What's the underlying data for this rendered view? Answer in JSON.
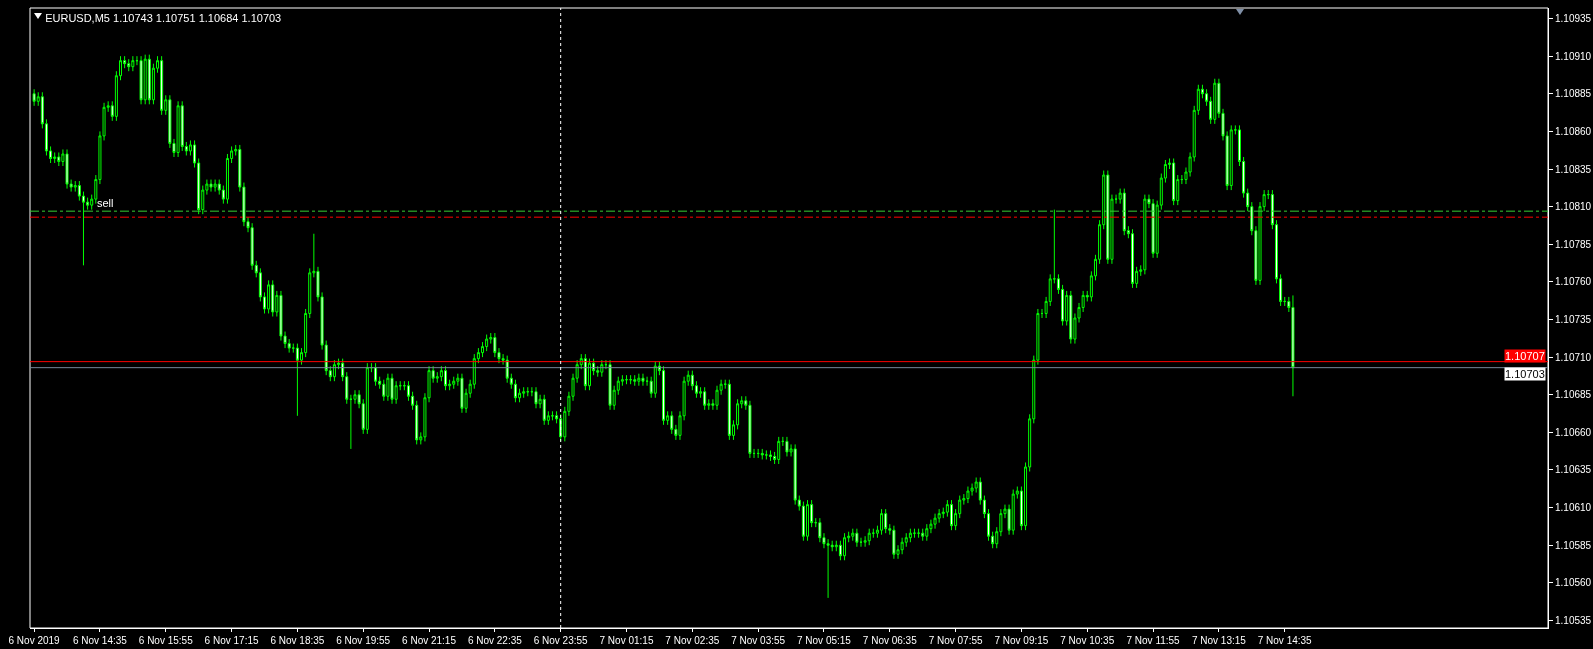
{
  "chart_data": {
    "type": "candlestick",
    "title": "EURUSD,M5 1.10743 1.10751 1.10684 1.10703",
    "color": "#00ff00",
    "x": [
      "2019-11-06T13:15",
      "2019-11-06T13:20",
      "2019-11-06T13:25",
      "2019-11-06T13:30",
      "2019-11-06T13:35",
      "2019-11-06T13:40",
      "2019-11-06T13:45",
      "2019-11-06T13:50",
      "2019-11-06T13:55",
      "2019-11-06T14:00",
      "2019-11-06T14:05",
      "2019-11-06T14:10",
      "2019-11-06T14:15",
      "2019-11-06T14:20",
      "2019-11-06T14:25",
      "2019-11-06T14:30",
      "2019-11-06T14:35",
      "2019-11-06T14:40",
      "2019-11-06T14:45",
      "2019-11-06T14:50",
      "2019-11-06T14:55",
      "2019-11-06T15:00",
      "2019-11-06T15:05",
      "2019-11-06T15:10",
      "2019-11-06T15:15",
      "2019-11-06T15:20",
      "2019-11-06T15:25",
      "2019-11-06T15:30",
      "2019-11-06T15:35",
      "2019-11-06T15:40",
      "2019-11-06T15:45",
      "2019-11-06T15:50",
      "2019-11-06T15:55",
      "2019-11-06T16:00",
      "2019-11-06T16:05",
      "2019-11-06T16:10",
      "2019-11-06T16:15",
      "2019-11-06T16:20",
      "2019-11-06T16:25",
      "2019-11-06T16:30",
      "2019-11-06T16:35",
      "2019-11-06T16:40",
      "2019-11-06T16:45",
      "2019-11-06T16:50",
      "2019-11-06T16:55",
      "2019-11-06T17:00",
      "2019-11-06T17:05",
      "2019-11-06T17:10",
      "2019-11-06T17:15",
      "2019-11-06T17:20",
      "2019-11-06T17:25",
      "2019-11-06T17:30",
      "2019-11-06T17:35",
      "2019-11-06T17:40",
      "2019-11-06T17:45",
      "2019-11-06T17:50",
      "2019-11-06T17:55",
      "2019-11-06T18:00",
      "2019-11-06T18:05",
      "2019-11-06T18:10",
      "2019-11-06T18:15",
      "2019-11-06T18:20",
      "2019-11-06T18:25",
      "2019-11-06T18:30",
      "2019-11-06T18:35",
      "2019-11-06T18:40",
      "2019-11-06T18:45",
      "2019-11-06T18:50",
      "2019-11-06T18:55",
      "2019-11-06T19:00",
      "2019-11-06T19:05",
      "2019-11-06T19:10",
      "2019-11-06T19:15",
      "2019-11-06T19:20",
      "2019-11-06T19:25",
      "2019-11-06T19:30",
      "2019-11-06T19:35",
      "2019-11-06T19:40",
      "2019-11-06T19:45",
      "2019-11-06T19:50",
      "2019-11-06T19:55",
      "2019-11-06T20:00",
      "2019-11-06T20:05",
      "2019-11-06T20:10",
      "2019-11-06T20:15",
      "2019-11-06T20:20",
      "2019-11-06T20:25",
      "2019-11-06T20:30",
      "2019-11-06T20:35",
      "2019-11-06T20:40",
      "2019-11-06T20:45",
      "2019-11-06T20:50",
      "2019-11-06T20:55",
      "2019-11-06T21:00",
      "2019-11-06T21:05",
      "2019-11-06T21:10",
      "2019-11-06T21:15",
      "2019-11-06T21:20",
      "2019-11-06T21:25",
      "2019-11-06T21:30",
      "2019-11-06T21:35",
      "2019-11-06T21:40",
      "2019-11-06T21:45",
      "2019-11-06T21:50",
      "2019-11-06T21:55",
      "2019-11-06T22:00",
      "2019-11-06T22:05",
      "2019-11-06T22:10",
      "2019-11-06T22:15",
      "2019-11-06T22:20",
      "2019-11-06T22:25",
      "2019-11-06T22:30",
      "2019-11-06T22:35",
      "2019-11-06T22:40",
      "2019-11-06T22:45",
      "2019-11-06T22:50",
      "2019-11-06T22:55",
      "2019-11-06T23:00",
      "2019-11-06T23:05",
      "2019-11-06T23:10",
      "2019-11-06T23:15",
      "2019-11-06T23:20",
      "2019-11-06T23:25",
      "2019-11-06T23:30",
      "2019-11-06T23:35",
      "2019-11-06T23:40",
      "2019-11-06T23:45",
      "2019-11-06T23:50",
      "2019-11-06T23:55",
      "2019-11-07T00:00",
      "2019-11-07T00:05",
      "2019-11-07T00:10",
      "2019-11-07T00:15",
      "2019-11-07T00:20",
      "2019-11-07T00:25",
      "2019-11-07T00:30",
      "2019-11-07T00:35",
      "2019-11-07T00:40",
      "2019-11-07T00:45",
      "2019-11-07T00:50",
      "2019-11-07T00:55",
      "2019-11-07T01:00",
      "2019-11-07T01:05",
      "2019-11-07T01:10",
      "2019-11-07T01:15",
      "2019-11-07T01:20",
      "2019-11-07T01:25",
      "2019-11-07T01:30",
      "2019-11-07T01:35",
      "2019-11-07T01:40",
      "2019-11-07T01:45",
      "2019-11-07T01:50",
      "2019-11-07T01:55",
      "2019-11-07T02:00",
      "2019-11-07T02:05",
      "2019-11-07T02:10",
      "2019-11-07T02:15",
      "2019-11-07T02:20",
      "2019-11-07T02:25",
      "2019-11-07T02:30",
      "2019-11-07T02:35",
      "2019-11-07T02:40",
      "2019-11-07T02:45",
      "2019-11-07T02:50",
      "2019-11-07T02:55",
      "2019-11-07T03:00",
      "2019-11-07T03:05",
      "2019-11-07T03:10",
      "2019-11-07T03:15",
      "2019-11-07T03:20",
      "2019-11-07T03:25",
      "2019-11-07T03:30",
      "2019-11-07T03:35",
      "2019-11-07T03:40",
      "2019-11-07T03:45",
      "2019-11-07T03:50",
      "2019-11-07T03:55",
      "2019-11-07T04:00",
      "2019-11-07T04:05",
      "2019-11-07T04:10",
      "2019-11-07T04:15",
      "2019-11-07T04:20",
      "2019-11-07T04:25",
      "2019-11-07T04:30",
      "2019-11-07T04:35",
      "2019-11-07T04:40",
      "2019-11-07T04:45",
      "2019-11-07T04:50",
      "2019-11-07T04:55",
      "2019-11-07T05:00",
      "2019-11-07T05:05",
      "2019-11-07T05:10",
      "2019-11-07T05:15",
      "2019-11-07T05:20",
      "2019-11-07T05:25",
      "2019-11-07T05:30",
      "2019-11-07T05:35",
      "2019-11-07T05:40",
      "2019-11-07T05:45",
      "2019-11-07T05:50",
      "2019-11-07T05:55",
      "2019-11-07T06:00",
      "2019-11-07T06:05",
      "2019-11-07T06:10",
      "2019-11-07T06:15",
      "2019-11-07T06:20",
      "2019-11-07T06:25",
      "2019-11-07T06:30",
      "2019-11-07T06:35",
      "2019-11-07T06:40",
      "2019-11-07T06:45",
      "2019-11-07T06:50",
      "2019-11-07T06:55",
      "2019-11-07T07:00",
      "2019-11-07T07:05",
      "2019-11-07T07:10",
      "2019-11-07T07:15",
      "2019-11-07T07:20",
      "2019-11-07T07:25",
      "2019-11-07T07:30",
      "2019-11-07T07:35",
      "2019-11-07T07:40",
      "2019-11-07T07:45",
      "2019-11-07T07:50",
      "2019-11-07T07:55",
      "2019-11-07T08:00",
      "2019-11-07T08:05",
      "2019-11-07T08:10",
      "2019-11-07T08:15",
      "2019-11-07T08:20",
      "2019-11-07T08:25",
      "2019-11-07T08:30",
      "2019-11-07T08:35",
      "2019-11-07T08:40",
      "2019-11-07T08:45",
      "2019-11-07T08:50",
      "2019-11-07T08:55",
      "2019-11-07T09:00",
      "2019-11-07T09:05",
      "2019-11-07T09:10",
      "2019-11-07T09:15",
      "2019-11-07T09:20",
      "2019-11-07T09:25",
      "2019-11-07T09:30",
      "2019-11-07T09:35",
      "2019-11-07T09:40",
      "2019-11-07T09:45",
      "2019-11-07T09:50",
      "2019-11-07T09:55",
      "2019-11-07T10:00",
      "2019-11-07T10:05",
      "2019-11-07T10:10",
      "2019-11-07T10:15",
      "2019-11-07T10:20",
      "2019-11-07T10:25",
      "2019-11-07T10:30",
      "2019-11-07T10:35",
      "2019-11-07T10:40",
      "2019-11-07T10:45",
      "2019-11-07T10:50",
      "2019-11-07T10:55",
      "2019-11-07T11:00",
      "2019-11-07T11:05",
      "2019-11-07T11:10",
      "2019-11-07T11:15",
      "2019-11-07T11:20",
      "2019-11-07T11:25",
      "2019-11-07T11:30",
      "2019-11-07T11:35",
      "2019-11-07T11:40",
      "2019-11-07T11:45",
      "2019-11-07T11:50",
      "2019-11-07T11:55",
      "2019-11-07T12:00",
      "2019-11-07T12:05",
      "2019-11-07T12:10",
      "2019-11-07T12:15",
      "2019-11-07T12:20",
      "2019-11-07T12:25",
      "2019-11-07T12:30",
      "2019-11-07T12:35",
      "2019-11-07T12:40",
      "2019-11-07T12:45",
      "2019-11-07T12:50",
      "2019-11-07T12:55",
      "2019-11-07T13:00",
      "2019-11-07T13:05",
      "2019-11-07T13:10",
      "2019-11-07T13:15",
      "2019-11-07T13:20",
      "2019-11-07T13:25",
      "2019-11-07T13:30",
      "2019-11-07T13:35",
      "2019-11-07T13:40",
      "2019-11-07T13:45",
      "2019-11-07T13:50",
      "2019-11-07T13:55",
      "2019-11-07T14:00",
      "2019-11-07T14:05",
      "2019-11-07T14:10",
      "2019-11-07T14:15",
      "2019-11-07T14:20",
      "2019-11-07T14:25",
      "2019-11-07T14:30",
      "2019-11-07T14:35",
      "2019-11-07T14:40",
      "2019-11-07T14:45"
    ],
    "xlim": [
      "2019-11-06T13:10",
      "2019-11-07T19:55"
    ],
    "xticks": [
      {
        "value": "2019-11-06T13:15",
        "label": "6 Nov 2019"
      },
      {
        "value": "2019-11-06T14:35",
        "label": "6 Nov 14:35"
      },
      {
        "value": "2019-11-06T15:55",
        "label": "6 Nov 15:55"
      },
      {
        "value": "2019-11-06T17:15",
        "label": "6 Nov 17:15"
      },
      {
        "value": "2019-11-06T18:35",
        "label": "6 Nov 18:35"
      },
      {
        "value": "2019-11-06T19:55",
        "label": "6 Nov 19:55"
      },
      {
        "value": "2019-11-06T21:15",
        "label": "6 Nov 21:15"
      },
      {
        "value": "2019-11-06T22:35",
        "label": "6 Nov 22:35"
      },
      {
        "value": "2019-11-06T23:55",
        "label": "6 Nov 23:55"
      },
      {
        "value": "2019-11-07T01:15",
        "label": "7 Nov 01:15"
      },
      {
        "value": "2019-11-07T02:35",
        "label": "7 Nov 02:35"
      },
      {
        "value": "2019-11-07T03:55",
        "label": "7 Nov 03:55"
      },
      {
        "value": "2019-11-07T05:15",
        "label": "7 Nov 05:15"
      },
      {
        "value": "2019-11-07T06:35",
        "label": "7 Nov 06:35"
      },
      {
        "value": "2019-11-07T07:55",
        "label": "7 Nov 07:55"
      },
      {
        "value": "2019-11-07T09:15",
        "label": "7 Nov 09:15"
      },
      {
        "value": "2019-11-07T10:35",
        "label": "7 Nov 10:35"
      },
      {
        "value": "2019-11-07T11:55",
        "label": "7 Nov 11:55"
      },
      {
        "value": "2019-11-07T13:15",
        "label": "7 Nov 13:15"
      },
      {
        "value": "2019-11-07T14:35",
        "label": "7 Nov 14:35"
      }
    ],
    "ohlc": [
      [
        1.10885,
        1.10888,
        1.10877,
        1.1088
      ],
      [
        1.1088,
        1.10886,
        1.10877,
        1.10883
      ],
      [
        1.10883,
        1.10886,
        1.10862,
        1.10865
      ],
      [
        1.10865,
        1.10868,
        1.10844,
        1.10847
      ],
      [
        1.10847,
        1.1085,
        1.10839,
        1.10842
      ],
      [
        1.10842,
        1.10846,
        1.10839,
        1.10843
      ],
      [
        1.10843,
        1.10846,
        1.10837,
        1.1084
      ],
      [
        1.1084,
        1.10848,
        1.10837,
        1.10845
      ],
      [
        1.10845,
        1.10848,
        1.10822,
        1.10825
      ],
      [
        1.10825,
        1.10828,
        1.1082,
        1.10823
      ],
      [
        1.10823,
        1.10827,
        1.1082,
        1.10824
      ],
      [
        1.10824,
        1.10827,
        1.10814,
        1.10817
      ],
      [
        1.10817,
        1.1082,
        1.10771,
        1.10813
      ],
      [
        1.10813,
        1.10816,
        1.10808,
        1.10811
      ],
      [
        1.10811,
        1.10818,
        1.10808,
        1.10815
      ],
      [
        1.10815,
        1.10831,
        1.10812,
        1.10828
      ],
      [
        1.10828,
        1.1086,
        1.10825,
        1.10857
      ],
      [
        1.10857,
        1.10879,
        1.10854,
        1.10876
      ],
      [
        1.10876,
        1.1088,
        1.10873,
        1.10877
      ],
      [
        1.10877,
        1.1088,
        1.10867,
        1.1087
      ],
      [
        1.1087,
        1.109,
        1.10867,
        1.10897
      ],
      [
        1.10897,
        1.1091,
        1.10894,
        1.10907
      ],
      [
        1.10907,
        1.1091,
        1.10902,
        1.10905
      ],
      [
        1.10905,
        1.10908,
        1.109,
        1.10903
      ],
      [
        1.10903,
        1.1091,
        1.109,
        1.10907
      ],
      [
        1.10907,
        1.1091,
        1.10904,
        1.10907
      ],
      [
        1.10907,
        1.1091,
        1.10878,
        1.10881
      ],
      [
        1.10881,
        1.10911,
        1.10878,
        1.10908
      ],
      [
        1.10908,
        1.10911,
        1.10878,
        1.10881
      ],
      [
        1.10881,
        1.10905,
        1.10878,
        1.10902
      ],
      [
        1.10902,
        1.1091,
        1.10899,
        1.10907
      ],
      [
        1.10907,
        1.1091,
        1.10871,
        1.10874
      ],
      [
        1.10874,
        1.10884,
        1.10871,
        1.10881
      ],
      [
        1.10881,
        1.10884,
        1.10849,
        1.10852
      ],
      [
        1.10852,
        1.10855,
        1.10843,
        1.10846
      ],
      [
        1.10846,
        1.1088,
        1.10843,
        1.10877
      ],
      [
        1.10877,
        1.1088,
        1.10847,
        1.1085
      ],
      [
        1.1085,
        1.10853,
        1.10844,
        1.10847
      ],
      [
        1.10847,
        1.10854,
        1.10844,
        1.10851
      ],
      [
        1.10851,
        1.10854,
        1.10836,
        1.10839
      ],
      [
        1.10839,
        1.10842,
        1.10805,
        1.10808
      ],
      [
        1.10808,
        1.10824,
        1.10805,
        1.10821
      ],
      [
        1.10821,
        1.10828,
        1.10818,
        1.10825
      ],
      [
        1.10825,
        1.10828,
        1.1082,
        1.10823
      ],
      [
        1.10823,
        1.10828,
        1.1082,
        1.10825
      ],
      [
        1.10825,
        1.10828,
        1.10818,
        1.10821
      ],
      [
        1.10821,
        1.10824,
        1.10812,
        1.10815
      ],
      [
        1.10815,
        1.10845,
        1.10812,
        1.10842
      ],
      [
        1.10842,
        1.1085,
        1.10839,
        1.10847
      ],
      [
        1.10847,
        1.10851,
        1.10844,
        1.10848
      ],
      [
        1.10848,
        1.10851,
        1.1082,
        1.10823
      ],
      [
        1.10823,
        1.10826,
        1.10797,
        1.108
      ],
      [
        1.108,
        1.10803,
        1.10793,
        1.10796
      ],
      [
        1.10796,
        1.10799,
        1.10768,
        1.10771
      ],
      [
        1.10771,
        1.10774,
        1.10763,
        1.10766
      ],
      [
        1.10766,
        1.10769,
        1.10747,
        1.1075
      ],
      [
        1.1075,
        1.10753,
        1.10739,
        1.10742
      ],
      [
        1.10742,
        1.10761,
        1.10739,
        1.10758
      ],
      [
        1.10758,
        1.10761,
        1.10737,
        1.1074
      ],
      [
        1.1074,
        1.10754,
        1.10737,
        1.10751
      ],
      [
        1.10751,
        1.10754,
        1.10721,
        1.10724
      ],
      [
        1.10724,
        1.10727,
        1.10716,
        1.10719
      ],
      [
        1.10719,
        1.10722,
        1.10713,
        1.10716
      ],
      [
        1.10716,
        1.10719,
        1.10713,
        1.10716
      ],
      [
        1.10716,
        1.10719,
        1.10671,
        1.10708
      ],
      [
        1.10708,
        1.10716,
        1.10705,
        1.10713
      ],
      [
        1.10713,
        1.10742,
        1.1071,
        1.10739
      ],
      [
        1.10739,
        1.10769,
        1.10736,
        1.10766
      ],
      [
        1.10766,
        1.10792,
        1.10763,
        1.10767
      ],
      [
        1.10767,
        1.1077,
        1.10747,
        1.1075
      ],
      [
        1.1075,
        1.10753,
        1.10715,
        1.10718
      ],
      [
        1.10718,
        1.10721,
        1.10698,
        1.10701
      ],
      [
        1.10701,
        1.10704,
        1.10694,
        1.10697
      ],
      [
        1.10697,
        1.10708,
        1.10694,
        1.10705
      ],
      [
        1.10705,
        1.10709,
        1.10702,
        1.10706
      ],
      [
        1.10706,
        1.10709,
        1.10694,
        1.10697
      ],
      [
        1.10697,
        1.107,
        1.10679,
        1.10682
      ],
      [
        1.10682,
        1.10685,
        1.10649,
        1.10682
      ],
      [
        1.10682,
        1.10688,
        1.10679,
        1.10685
      ],
      [
        1.10685,
        1.10688,
        1.10676,
        1.10679
      ],
      [
        1.10679,
        1.10682,
        1.10659,
        1.10662
      ],
      [
        1.10662,
        1.10706,
        1.10659,
        1.10703
      ],
      [
        1.10703,
        1.10706,
        1.107,
        1.10703
      ],
      [
        1.10703,
        1.10706,
        1.10691,
        1.10694
      ],
      [
        1.10694,
        1.10697,
        1.10689,
        1.10692
      ],
      [
        1.10692,
        1.10695,
        1.10681,
        1.10684
      ],
      [
        1.10684,
        1.10699,
        1.10681,
        1.10696
      ],
      [
        1.10696,
        1.10699,
        1.10679,
        1.10682
      ],
      [
        1.10682,
        1.10694,
        1.10679,
        1.10691
      ],
      [
        1.10691,
        1.10694,
        1.10688,
        1.10691
      ],
      [
        1.10691,
        1.10694,
        1.10688,
        1.10691
      ],
      [
        1.10691,
        1.10694,
        1.10681,
        1.10684
      ],
      [
        1.10684,
        1.10687,
        1.10675,
        1.10678
      ],
      [
        1.10678,
        1.10681,
        1.10652,
        1.10655
      ],
      [
        1.10655,
        1.1066,
        1.10652,
        1.10657
      ],
      [
        1.10657,
        1.10686,
        1.10654,
        1.10683
      ],
      [
        1.10683,
        1.10704,
        1.1068,
        1.10701
      ],
      [
        1.10701,
        1.10704,
        1.10693,
        1.10696
      ],
      [
        1.10696,
        1.107,
        1.10693,
        1.10697
      ],
      [
        1.10697,
        1.10704,
        1.10694,
        1.10701
      ],
      [
        1.10701,
        1.10704,
        1.10688,
        1.10691
      ],
      [
        1.10691,
        1.10695,
        1.10688,
        1.10692
      ],
      [
        1.10692,
        1.10697,
        1.10689,
        1.10694
      ],
      [
        1.10694,
        1.10699,
        1.10691,
        1.10696
      ],
      [
        1.10696,
        1.10699,
        1.10673,
        1.10676
      ],
      [
        1.10676,
        1.10689,
        1.10673,
        1.10686
      ],
      [
        1.10686,
        1.10695,
        1.10683,
        1.10692
      ],
      [
        1.10692,
        1.10712,
        1.10689,
        1.10709
      ],
      [
        1.10709,
        1.10716,
        1.10706,
        1.10713
      ],
      [
        1.10713,
        1.1072,
        1.1071,
        1.10717
      ],
      [
        1.10717,
        1.10725,
        1.10714,
        1.10722
      ],
      [
        1.10722,
        1.10726,
        1.10719,
        1.10723
      ],
      [
        1.10723,
        1.10726,
        1.1071,
        1.10713
      ],
      [
        1.10713,
        1.10716,
        1.10706,
        1.10709
      ],
      [
        1.10709,
        1.10712,
        1.10705,
        1.10708
      ],
      [
        1.10708,
        1.10711,
        1.10693,
        1.10696
      ],
      [
        1.10696,
        1.10699,
        1.10689,
        1.10692
      ],
      [
        1.10692,
        1.10695,
        1.1068,
        1.10683
      ],
      [
        1.10683,
        1.10689,
        1.1068,
        1.10686
      ],
      [
        1.10686,
        1.1069,
        1.10683,
        1.10687
      ],
      [
        1.10687,
        1.1069,
        1.10684,
        1.10687
      ],
      [
        1.10687,
        1.1069,
        1.10684,
        1.10687
      ],
      [
        1.10687,
        1.1069,
        1.10676,
        1.10679
      ],
      [
        1.10679,
        1.10685,
        1.10676,
        1.10682
      ],
      [
        1.10682,
        1.10685,
        1.10665,
        1.10668
      ],
      [
        1.10668,
        1.10674,
        1.10665,
        1.10671
      ],
      [
        1.10671,
        1.10674,
        1.10668,
        1.10671
      ],
      [
        1.10671,
        1.10674,
        1.10666,
        1.10669
      ],
      [
        1.10669,
        1.10672,
        1.10654,
        1.10657
      ],
      [
        1.10657,
        1.10677,
        1.10654,
        1.10674
      ],
      [
        1.10674,
        1.10687,
        1.10671,
        1.10684
      ],
      [
        1.10684,
        1.10699,
        1.10681,
        1.10696
      ],
      [
        1.10696,
        1.10708,
        1.10693,
        1.10705
      ],
      [
        1.10705,
        1.10712,
        1.10702,
        1.10709
      ],
      [
        1.10709,
        1.10712,
        1.10688,
        1.10691
      ],
      [
        1.10691,
        1.10709,
        1.10688,
        1.10706
      ],
      [
        1.10706,
        1.10709,
        1.10698,
        1.10701
      ],
      [
        1.10701,
        1.10704,
        1.10697,
        1.107
      ],
      [
        1.107,
        1.10708,
        1.10697,
        1.10705
      ],
      [
        1.10705,
        1.10708,
        1.10702,
        1.10705
      ],
      [
        1.10705,
        1.10708,
        1.10675,
        1.10678
      ],
      [
        1.10678,
        1.10691,
        1.10675,
        1.10688
      ],
      [
        1.10688,
        1.10697,
        1.10685,
        1.10694
      ],
      [
        1.10694,
        1.10698,
        1.10691,
        1.10695
      ],
      [
        1.10695,
        1.10698,
        1.10692,
        1.10695
      ],
      [
        1.10695,
        1.10698,
        1.10692,
        1.10695
      ],
      [
        1.10695,
        1.10698,
        1.10691,
        1.10694
      ],
      [
        1.10694,
        1.10699,
        1.10691,
        1.10696
      ],
      [
        1.10696,
        1.10699,
        1.10691,
        1.10694
      ],
      [
        1.10694,
        1.10697,
        1.10691,
        1.10694
      ],
      [
        1.10694,
        1.10697,
        1.10683,
        1.10686
      ],
      [
        1.10686,
        1.10707,
        1.10683,
        1.10704
      ],
      [
        1.10704,
        1.10707,
        1.10698,
        1.10701
      ],
      [
        1.10701,
        1.10704,
        1.10665,
        1.10668
      ],
      [
        1.10668,
        1.10674,
        1.10665,
        1.10671
      ],
      [
        1.10671,
        1.10674,
        1.10659,
        1.10662
      ],
      [
        1.10662,
        1.10665,
        1.10655,
        1.10658
      ],
      [
        1.10658,
        1.10674,
        1.10655,
        1.10671
      ],
      [
        1.10671,
        1.10697,
        1.10668,
        1.10694
      ],
      [
        1.10694,
        1.10701,
        1.10691,
        1.10698
      ],
      [
        1.10698,
        1.10701,
        1.10688,
        1.10691
      ],
      [
        1.10691,
        1.10694,
        1.10683,
        1.10686
      ],
      [
        1.10686,
        1.1069,
        1.10683,
        1.10687
      ],
      [
        1.10687,
        1.1069,
        1.10675,
        1.10678
      ],
      [
        1.10678,
        1.10682,
        1.10675,
        1.10679
      ],
      [
        1.10679,
        1.10682,
        1.10675,
        1.10678
      ],
      [
        1.10678,
        1.10691,
        1.10675,
        1.10688
      ],
      [
        1.10688,
        1.10695,
        1.10685,
        1.10692
      ],
      [
        1.10692,
        1.10695,
        1.10689,
        1.10692
      ],
      [
        1.10692,
        1.10695,
        1.10655,
        1.10658
      ],
      [
        1.10658,
        1.10668,
        1.10655,
        1.10665
      ],
      [
        1.10665,
        1.10682,
        1.10662,
        1.10679
      ],
      [
        1.10679,
        1.10684,
        1.10676,
        1.10681
      ],
      [
        1.10681,
        1.10684,
        1.10675,
        1.10678
      ],
      [
        1.10678,
        1.10681,
        1.10643,
        1.10646
      ],
      [
        1.10646,
        1.10649,
        1.10643,
        1.10646
      ],
      [
        1.10646,
        1.10649,
        1.10643,
        1.10646
      ],
      [
        1.10646,
        1.10649,
        1.10642,
        1.10645
      ],
      [
        1.10645,
        1.10648,
        1.10642,
        1.10645
      ],
      [
        1.10645,
        1.10648,
        1.10641,
        1.10644
      ],
      [
        1.10644,
        1.10647,
        1.10639,
        1.10642
      ],
      [
        1.10642,
        1.10657,
        1.10639,
        1.10654
      ],
      [
        1.10654,
        1.10657,
        1.10651,
        1.10654
      ],
      [
        1.10654,
        1.10657,
        1.10644,
        1.10647
      ],
      [
        1.10647,
        1.10652,
        1.10644,
        1.10649
      ],
      [
        1.10649,
        1.10652,
        1.10612,
        1.10615
      ],
      [
        1.10615,
        1.10618,
        1.10608,
        1.10611
      ],
      [
        1.10611,
        1.10614,
        1.10588,
        1.10591
      ],
      [
        1.10591,
        1.10615,
        1.10588,
        1.10612
      ],
      [
        1.10612,
        1.10615,
        1.10597,
        1.106
      ],
      [
        1.106,
        1.10603,
        1.10597,
        1.106
      ],
      [
        1.106,
        1.10603,
        1.10587,
        1.1059
      ],
      [
        1.1059,
        1.10593,
        1.10583,
        1.10586
      ],
      [
        1.10586,
        1.10589,
        1.1055,
        1.10585
      ],
      [
        1.10585,
        1.10588,
        1.10581,
        1.10584
      ],
      [
        1.10584,
        1.10588,
        1.10581,
        1.10585
      ],
      [
        1.10585,
        1.10588,
        1.10575,
        1.10578
      ],
      [
        1.10578,
        1.10593,
        1.10575,
        1.1059
      ],
      [
        1.1059,
        1.10594,
        1.10587,
        1.10591
      ],
      [
        1.10591,
        1.10596,
        1.10588,
        1.10593
      ],
      [
        1.10593,
        1.10596,
        1.10584,
        1.10587
      ],
      [
        1.10587,
        1.1059,
        1.10584,
        1.10587
      ],
      [
        1.10587,
        1.10591,
        1.10584,
        1.10588
      ],
      [
        1.10588,
        1.10596,
        1.10585,
        1.10593
      ],
      [
        1.10593,
        1.10596,
        1.1059,
        1.10593
      ],
      [
        1.10593,
        1.10598,
        1.1059,
        1.10595
      ],
      [
        1.10595,
        1.10609,
        1.10592,
        1.10606
      ],
      [
        1.10606,
        1.10609,
        1.10593,
        1.10596
      ],
      [
        1.10596,
        1.10599,
        1.10592,
        1.10595
      ],
      [
        1.10595,
        1.10598,
        1.10576,
        1.10579
      ],
      [
        1.10579,
        1.10585,
        1.10576,
        1.10582
      ],
      [
        1.10582,
        1.1059,
        1.10579,
        1.10587
      ],
      [
        1.10587,
        1.10593,
        1.10584,
        1.1059
      ],
      [
        1.1059,
        1.10596,
        1.10587,
        1.10593
      ],
      [
        1.10593,
        1.10596,
        1.1059,
        1.10593
      ],
      [
        1.10593,
        1.10596,
        1.1059,
        1.10593
      ],
      [
        1.10593,
        1.10596,
        1.10588,
        1.10591
      ],
      [
        1.10591,
        1.10599,
        1.10588,
        1.10596
      ],
      [
        1.10596,
        1.10602,
        1.10593,
        1.10599
      ],
      [
        1.10599,
        1.10606,
        1.10596,
        1.10603
      ],
      [
        1.10603,
        1.10609,
        1.106,
        1.10606
      ],
      [
        1.10606,
        1.1061,
        1.10603,
        1.10607
      ],
      [
        1.10607,
        1.10615,
        1.10604,
        1.10612
      ],
      [
        1.10612,
        1.10615,
        1.10595,
        1.10598
      ],
      [
        1.10598,
        1.10609,
        1.10595,
        1.10606
      ],
      [
        1.10606,
        1.10618,
        1.10603,
        1.10615
      ],
      [
        1.10615,
        1.10619,
        1.10612,
        1.10616
      ],
      [
        1.10616,
        1.10624,
        1.10613,
        1.10621
      ],
      [
        1.10621,
        1.10626,
        1.10618,
        1.10623
      ],
      [
        1.10623,
        1.1063,
        1.1062,
        1.10627
      ],
      [
        1.10627,
        1.1063,
        1.10612,
        1.10615
      ],
      [
        1.10615,
        1.10618,
        1.10603,
        1.10606
      ],
      [
        1.10606,
        1.10609,
        1.10588,
        1.10591
      ],
      [
        1.10591,
        1.10594,
        1.10583,
        1.10586
      ],
      [
        1.10586,
        1.10597,
        1.10583,
        1.10594
      ],
      [
        1.10594,
        1.10609,
        1.10591,
        1.10606
      ],
      [
        1.10606,
        1.10612,
        1.10603,
        1.10609
      ],
      [
        1.10609,
        1.10612,
        1.10592,
        1.10595
      ],
      [
        1.10595,
        1.10622,
        1.10592,
        1.10619
      ],
      [
        1.10619,
        1.10624,
        1.10616,
        1.10621
      ],
      [
        1.10621,
        1.10624,
        1.10595,
        1.10598
      ],
      [
        1.10598,
        1.1064,
        1.10595,
        1.10637
      ],
      [
        1.10637,
        1.10672,
        1.10634,
        1.10669
      ],
      [
        1.10669,
        1.10711,
        1.10666,
        1.10708
      ],
      [
        1.10708,
        1.10742,
        1.10705,
        1.10739
      ],
      [
        1.10739,
        1.10742,
        1.10736,
        1.10739
      ],
      [
        1.10739,
        1.1075,
        1.10736,
        1.10747
      ],
      [
        1.10747,
        1.10765,
        1.10744,
        1.10762
      ],
      [
        1.10762,
        1.10808,
        1.10759,
        1.10762
      ],
      [
        1.10762,
        1.10765,
        1.10752,
        1.10755
      ],
      [
        1.10755,
        1.10758,
        1.10731,
        1.10734
      ],
      [
        1.10734,
        1.10754,
        1.10731,
        1.10751
      ],
      [
        1.10751,
        1.10754,
        1.10719,
        1.10722
      ],
      [
        1.10722,
        1.10739,
        1.10719,
        1.10736
      ],
      [
        1.10736,
        1.10746,
        1.10733,
        1.10743
      ],
      [
        1.10743,
        1.10754,
        1.1074,
        1.10751
      ],
      [
        1.10751,
        1.10754,
        1.10747,
        1.1075
      ],
      [
        1.1075,
        1.10767,
        1.10747,
        1.10764
      ],
      [
        1.10764,
        1.10778,
        1.10761,
        1.10775
      ],
      [
        1.10775,
        1.10801,
        1.10772,
        1.10798
      ],
      [
        1.10798,
        1.10834,
        1.10795,
        1.10831
      ],
      [
        1.10831,
        1.10834,
        1.10772,
        1.10775
      ],
      [
        1.10775,
        1.10818,
        1.10772,
        1.10815
      ],
      [
        1.10815,
        1.10818,
        1.10812,
        1.10815
      ],
      [
        1.10815,
        1.10822,
        1.10812,
        1.10819
      ],
      [
        1.10819,
        1.10822,
        1.10791,
        1.10794
      ],
      [
        1.10794,
        1.10797,
        1.10789,
        1.10792
      ],
      [
        1.10792,
        1.10795,
        1.10756,
        1.10759
      ],
      [
        1.10759,
        1.1077,
        1.10756,
        1.10767
      ],
      [
        1.10767,
        1.10771,
        1.10764,
        1.10768
      ],
      [
        1.10768,
        1.10818,
        1.10765,
        1.10815
      ],
      [
        1.10815,
        1.10818,
        1.10809,
        1.10812
      ],
      [
        1.10812,
        1.10815,
        1.10776,
        1.10779
      ],
      [
        1.10779,
        1.10814,
        1.10776,
        1.10811
      ],
      [
        1.10811,
        1.10832,
        1.10808,
        1.10829
      ],
      [
        1.10829,
        1.10841,
        1.10826,
        1.10838
      ],
      [
        1.10838,
        1.10842,
        1.10835,
        1.10839
      ],
      [
        1.10839,
        1.10842,
        1.10811,
        1.10814
      ],
      [
        1.10814,
        1.10831,
        1.10811,
        1.10828
      ],
      [
        1.10828,
        1.10831,
        1.10825,
        1.10828
      ],
      [
        1.10828,
        1.10836,
        1.10825,
        1.10833
      ],
      [
        1.10833,
        1.10846,
        1.1083,
        1.10843
      ],
      [
        1.10843,
        1.10877,
        1.1084,
        1.10874
      ],
      [
        1.10874,
        1.10891,
        1.10871,
        1.10888
      ],
      [
        1.10888,
        1.10891,
        1.10882,
        1.10885
      ],
      [
        1.10885,
        1.10888,
        1.10877,
        1.1088
      ],
      [
        1.1088,
        1.10883,
        1.10865,
        1.10868
      ],
      [
        1.10868,
        1.10895,
        1.10865,
        1.10892
      ],
      [
        1.10892,
        1.10895,
        1.10869,
        1.10872
      ],
      [
        1.10872,
        1.10875,
        1.10854,
        1.10857
      ],
      [
        1.10857,
        1.1086,
        1.10821,
        1.10824
      ],
      [
        1.10824,
        1.10864,
        1.10821,
        1.10861
      ],
      [
        1.10861,
        1.10864,
        1.10858,
        1.10861
      ],
      [
        1.10861,
        1.10864,
        1.10837,
        1.1084
      ],
      [
        1.1084,
        1.10843,
        1.10816,
        1.10819
      ],
      [
        1.10819,
        1.10822,
        1.10807,
        1.1081
      ],
      [
        1.1081,
        1.10813,
        1.10791,
        1.10794
      ],
      [
        1.10794,
        1.10797,
        1.10758,
        1.10761
      ],
      [
        1.10761,
        1.10813,
        1.10758,
        1.1081
      ],
      [
        1.1081,
        1.10821,
        1.10807,
        1.10818
      ],
      [
        1.10818,
        1.10821,
        1.10815,
        1.10818
      ],
      [
        1.10818,
        1.10821,
        1.10795,
        1.10798
      ],
      [
        1.10798,
        1.10801,
        1.10759,
        1.10762
      ],
      [
        1.10762,
        1.10765,
        1.10744,
        1.10747
      ],
      [
        1.10747,
        1.1075,
        1.10744,
        1.10747
      ],
      [
        1.10747,
        1.1075,
        1.1074,
        1.10743
      ],
      [
        1.10743,
        1.10751,
        1.10684,
        1.10703
      ]
    ],
    "ylim": [
      1.1053,
      1.10942
    ],
    "yticks": [
      {
        "value": 1.10535,
        "label": "1.10535"
      },
      {
        "value": 1.1056,
        "label": "1.10560"
      },
      {
        "value": 1.10585,
        "label": "1.10585"
      },
      {
        "value": 1.1061,
        "label": "1.10610"
      },
      {
        "value": 1.10635,
        "label": "1.10635"
      },
      {
        "value": 1.1066,
        "label": "1.10660"
      },
      {
        "value": 1.10685,
        "label": "1.10685"
      },
      {
        "value": 1.1071,
        "label": "1.10710"
      },
      {
        "value": 1.10735,
        "label": "1.10735"
      },
      {
        "value": 1.1076,
        "label": "1.10760"
      },
      {
        "value": 1.10785,
        "label": "1.10785"
      },
      {
        "value": 1.1081,
        "label": "1.10810"
      },
      {
        "value": 1.10835,
        "label": "1.10835"
      },
      {
        "value": 1.1086,
        "label": "1.10860"
      },
      {
        "value": 1.10885,
        "label": "1.10885"
      },
      {
        "value": 1.1091,
        "label": "1.10910"
      },
      {
        "value": 1.10935,
        "label": "1.10935"
      }
    ],
    "ref_lines": [
      {
        "axis": "y",
        "value": 1.10807,
        "color": "#32cd32",
        "line_style": "dashdot"
      },
      {
        "axis": "y",
        "value": 1.10803,
        "color": "#ff0000",
        "line_style": "dashdot"
      },
      {
        "axis": "y",
        "value": 1.10707,
        "color": "#ff0000",
        "line_style": "solid",
        "label": "1.10707"
      },
      {
        "axis": "y",
        "value": 1.10703,
        "color": "#778899",
        "line_style": "solid",
        "label": "1.10703"
      },
      {
        "axis": "x",
        "value": "2019-11-06T23:55",
        "color": "#ffffff",
        "line_style": "dotted"
      }
    ],
    "annotations": [
      {
        "text": "sell",
        "y": 1.10807
      }
    ]
  }
}
